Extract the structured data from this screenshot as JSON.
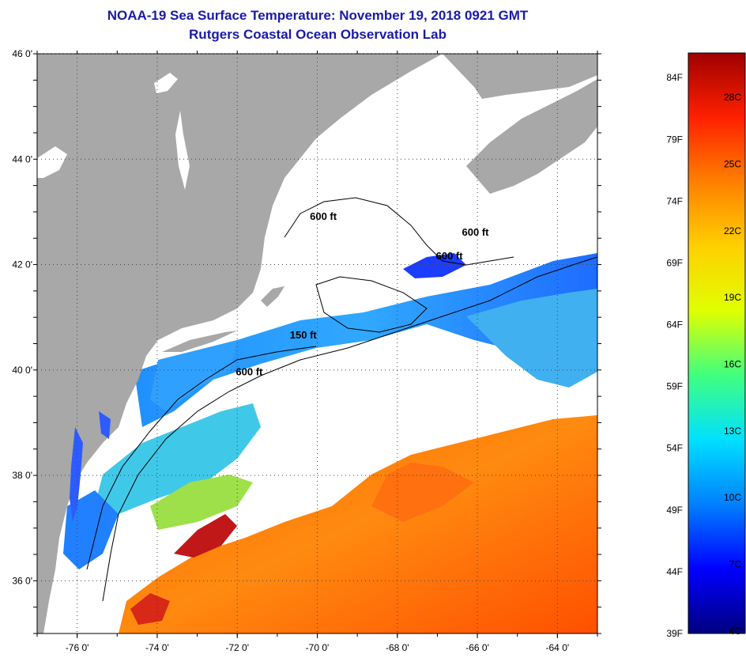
{
  "header": {
    "title": "NOAA-19 Sea Surface Temperature:  November 19, 2018 0921 GMT",
    "subtitle": "Rutgers Coastal Ocean Observation Lab"
  },
  "map": {
    "lon_range": [
      -77,
      -63
    ],
    "lat_range": [
      35,
      46
    ],
    "lon_ticks": [
      "-76 0'",
      "-74 0'",
      "-72 0'",
      "-70 0'",
      "-68 0'",
      "-66 0'",
      "-64 0'"
    ],
    "lat_ticks": [
      "46 0'",
      "44 0'",
      "42 0'",
      "40 0'",
      "38 0'",
      "36 0'"
    ],
    "land_color": "#a8a8a8",
    "cloud_color": "#ffffff",
    "contours": [
      {
        "label": "600 ft",
        "lon": -69.85,
        "lat": 42.85
      },
      {
        "label": "600 ft",
        "lon": -66.05,
        "lat": 42.55
      },
      {
        "label": "600 ft",
        "lon": -66.7,
        "lat": 42.1
      },
      {
        "label": "150 ft",
        "lon": -70.35,
        "lat": 40.6
      },
      {
        "label": "600 ft",
        "lon": -71.7,
        "lat": 39.9
      }
    ]
  },
  "colorbar": {
    "f_labels": [
      "84F",
      "79F",
      "74F",
      "69F",
      "64F",
      "59F",
      "54F",
      "49F",
      "44F",
      "39F"
    ],
    "c_labels": [
      "28C",
      "25C",
      "22C",
      "19C",
      "16C",
      "13C",
      "10C",
      "7C",
      "4C"
    ],
    "stops": [
      "#00007f",
      "#0000ff",
      "#0080ff",
      "#00e0ff",
      "#40ff80",
      "#e0ff00",
      "#ffd000",
      "#ff8000",
      "#ff2000",
      "#9f0000"
    ]
  }
}
